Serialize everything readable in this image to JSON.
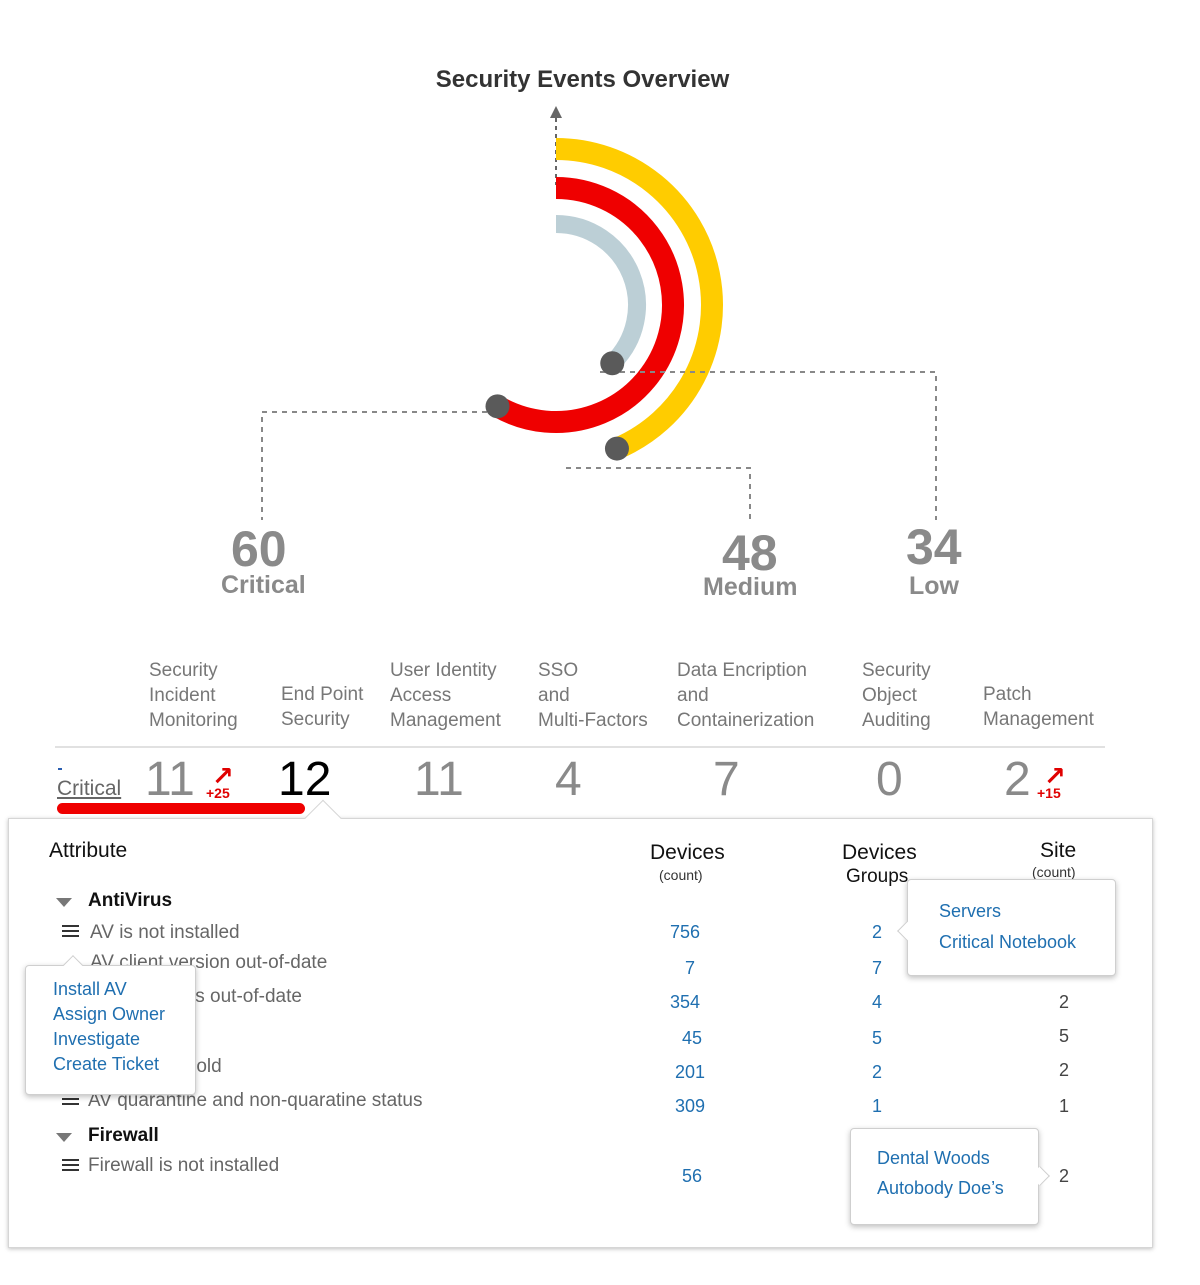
{
  "title": "Security Events Overview",
  "colors": {
    "critical": "#ef0000",
    "medium": "#ffcc00",
    "low": "#bccfd6",
    "marker": "#5a5a5a",
    "link": "#1f6fb0"
  },
  "summary": {
    "critical": {
      "value": "60",
      "label": "Critical"
    },
    "medium": {
      "value": "48",
      "label": "Medium"
    },
    "low": {
      "value": "34",
      "label": "Low"
    }
  },
  "columns": [
    "Security\nIncident\nMonitoring",
    "End Point\nSecurity",
    "User Identity\nAccess\nManagement",
    "SSO\nand\nMulti-Factors",
    "Data Encription\nand\nContainerization",
    "Security\nObject\nAuditing",
    "Patch\nManagement"
  ],
  "row": {
    "label": "Critical",
    "values": [
      "11",
      "12",
      "11",
      "4",
      "7",
      "0",
      "2"
    ],
    "trend_1": "+25",
    "trend_7": "+15"
  },
  "table": {
    "headers": {
      "attribute": "Attribute",
      "devices": "Devices",
      "devices_sub": "(count)",
      "groups": "Devices",
      "groups_sub": "Groups",
      "site": "Site",
      "site_sub": "(count)"
    },
    "groups": [
      {
        "name": "AntiVirus",
        "rows": [
          {
            "attr": "AV is not installed",
            "devices": "756",
            "groups": "2",
            "site": ""
          },
          {
            "attr": "AV client version out-of-date",
            "devices": "7",
            "groups": "7",
            "site": ""
          },
          {
            "attr": "AV definitions out-of-date",
            "devices": "354",
            "groups": "4",
            "site": "2"
          },
          {
            "attr": "",
            "devices": "45",
            "groups": "5",
            "site": "5"
          },
          {
            "attr": "AV scan too old",
            "devices": "201",
            "groups": "2",
            "site": "2"
          },
          {
            "attr": "AV quarantine and non-quaratine status",
            "devices": "309",
            "groups": "1",
            "site": "1"
          }
        ]
      },
      {
        "name": "Firewall",
        "rows": [
          {
            "attr": "Firewall is not installed",
            "devices": "56",
            "groups": "",
            "site": "2"
          }
        ]
      }
    ]
  },
  "action_menu": [
    "Install AV",
    "Assign Owner",
    "Investigate",
    "Create Ticket"
  ],
  "groups_popup": [
    "Servers",
    "Critical Notebook"
  ],
  "sites_popup": [
    "Dental Woods",
    "Autobody Doe’s"
  ]
}
